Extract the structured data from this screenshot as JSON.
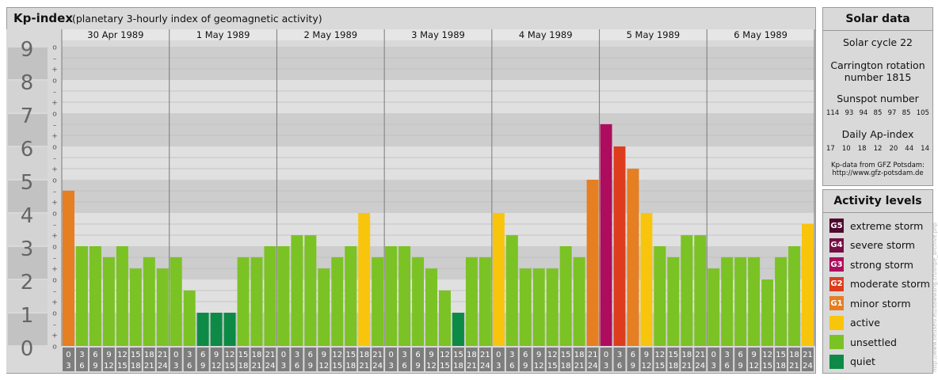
{
  "header": {
    "title": "Kp-index",
    "subtitle": "(planetary 3-hourly index of geomagnetic activity)"
  },
  "chart_data": {
    "type": "bar",
    "ylim": [
      0,
      9
    ],
    "y_ticks": [
      "0",
      "1",
      "2",
      "3",
      "4",
      "5",
      "6",
      "7",
      "8",
      "9"
    ],
    "minor_marks": [
      "o",
      "+",
      "–"
    ],
    "days": [
      "30 Apr 1989",
      "1 May 1989",
      "2 May 1989",
      "3 May 1989",
      "4 May 1989",
      "5 May 1989",
      "6 May 1989"
    ],
    "interval_labels": [
      [
        "0",
        "3"
      ],
      [
        "3",
        "6"
      ],
      [
        "6",
        "9"
      ],
      [
        "9",
        "12"
      ],
      [
        "12",
        "15"
      ],
      [
        "15",
        "18"
      ],
      [
        "18",
        "21"
      ],
      [
        "21",
        "24"
      ]
    ],
    "values": [
      [
        4.67,
        3.0,
        3.0,
        2.67,
        3.0,
        2.33,
        2.67,
        2.33
      ],
      [
        2.67,
        1.67,
        1.0,
        1.0,
        1.0,
        2.67,
        2.67,
        3.0
      ],
      [
        3.0,
        3.33,
        3.33,
        2.33,
        2.67,
        3.0,
        4.0,
        2.67
      ],
      [
        3.0,
        3.0,
        2.67,
        2.33,
        1.67,
        1.0,
        2.67,
        2.67
      ],
      [
        4.0,
        3.33,
        2.33,
        2.33,
        2.33,
        3.0,
        2.67,
        5.0
      ],
      [
        6.67,
        6.0,
        5.33,
        4.0,
        3.0,
        2.67,
        3.33,
        3.33
      ],
      [
        2.33,
        2.67,
        2.67,
        2.67,
        2.0,
        2.67,
        3.0,
        3.67
      ]
    ],
    "levels": [
      {
        "code": "G5",
        "name": "extreme storm",
        "color": "#4e0a2e"
      },
      {
        "code": "G4",
        "name": "severe storm",
        "color": "#760f45"
      },
      {
        "code": "G3",
        "name": "strong storm",
        "color": "#ae0c5e"
      },
      {
        "code": "G2",
        "name": "moderate storm",
        "color": "#dd3d1d"
      },
      {
        "code": "G1",
        "name": "minor storm",
        "color": "#e67e22"
      },
      {
        "code": "",
        "name": "active",
        "color": "#f9c50c"
      },
      {
        "code": "",
        "name": "unsettled",
        "color": "#7bc224"
      },
      {
        "code": "",
        "name": "quiet",
        "color": "#0d8a46"
      }
    ]
  },
  "solar": {
    "title": "Solar data",
    "cycle": "Solar cycle 22",
    "rotation_line1": "Carrington rotation",
    "rotation_line2": "number 1815",
    "sunspot_title": "Sunspot number",
    "sunspot": [
      "114",
      "93",
      "94",
      "85",
      "97",
      "85",
      "105"
    ],
    "ap_title": "Daily Ap-index",
    "ap": [
      "17",
      "10",
      "18",
      "12",
      "20",
      "44",
      "14"
    ],
    "source_line1": "Kp-data from GFZ Potsdam:",
    "source_line2": "http://www.gfz-potsdam.de"
  },
  "activity": {
    "title": "Activity levels"
  },
  "watermark": "http://www.tieuselv.eu/dawwang.ch/dhpe_archive.php"
}
